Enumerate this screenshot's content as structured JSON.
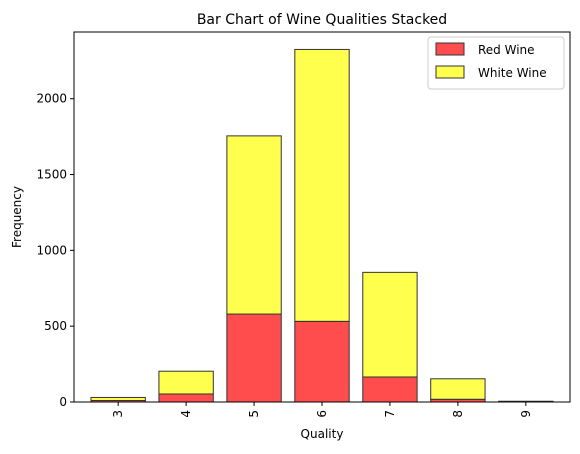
{
  "chart_data": {
    "type": "bar",
    "stacked": true,
    "title": "Bar Chart of Wine Qualities Stacked",
    "xlabel": "Quality",
    "ylabel": "Frequency",
    "categories": [
      "3",
      "4",
      "5",
      "6",
      "7",
      "8",
      "9"
    ],
    "series": [
      {
        "name": "Red Wine",
        "color": "#ff4d4d",
        "values": [
          10,
          53,
          580,
          532,
          165,
          18,
          0
        ]
      },
      {
        "name": "White Wine",
        "color": "#ffff4d",
        "values": [
          20,
          150,
          1175,
          1793,
          690,
          135,
          5
        ]
      }
    ],
    "ylim": [
      0,
      2440
    ],
    "yticks": [
      0,
      500,
      1000,
      1500,
      2000
    ],
    "x_tick_rotation": 90,
    "grid": false,
    "legend_position": "top-right",
    "bar_edge_color": "#333333"
  }
}
